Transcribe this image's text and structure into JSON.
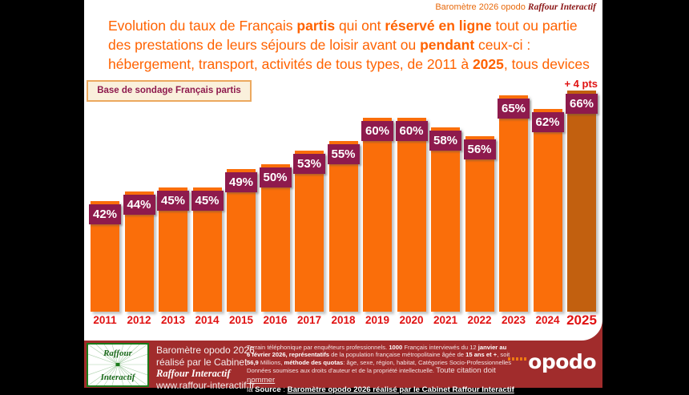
{
  "header": {
    "credit_plain": "Baromètre 2026 opodo",
    "credit_brand": "Raffour Interactif"
  },
  "title": {
    "l1p1": "Evolution du taux de Français ",
    "l1p2": "partis",
    "l1p3": " qui ont ",
    "l1p4": "réservé en ligne",
    "l1p5": " tout ou partie",
    "l2p1": "des prestations de leurs séjours de loisir avant ou ",
    "l2p2": "pendant",
    "l2p3": " ceux-ci :",
    "l3p1": "hébergement, transport, activités de tous types, de 2011 à ",
    "l3p2": "2025",
    "l3p3": ", tous devices"
  },
  "base_label": "Base de sondage Français partis",
  "chart_data": {
    "type": "bar",
    "title": "Evolution du taux de Français partis qui ont réservé en ligne tout ou partie des prestations de leurs séjours de loisir avant ou pendant ceux-ci : hébergement, transport, activités de tous types, de 2011 à 2025, tous devices",
    "base_note": "Base de sondage Français partis",
    "categories": [
      "2011",
      "2012",
      "2013",
      "2014",
      "2015",
      "2016",
      "2017",
      "2018",
      "2019",
      "2020",
      "2021",
      "2022",
      "2023",
      "2024",
      "2025"
    ],
    "values": [
      42,
      44,
      45,
      45,
      49,
      50,
      53,
      55,
      60,
      60,
      58,
      56,
      65,
      62,
      66
    ],
    "value_suffix": "%",
    "annotation": "+ 4 pts",
    "ylim": [
      18,
      70
    ],
    "grid": false,
    "legend": false,
    "bar_color": "#FA6E0A",
    "final_bar_color": "#C2600F",
    "value_label_bg": "#8E1A4D",
    "value_label_color": "#FFFFFF",
    "category_label_color": "#E01212",
    "annotation_color": "#E01212"
  },
  "footer": {
    "logo": {
      "top": "Raffour",
      "bottom": "Interactif"
    },
    "credit_l1": "Baromètre opodo 2026",
    "credit_l2": "réalisé par le Cabinet",
    "credit_l3": "Raffour Interactif",
    "credit_l4": "www.raffour-interactif.fr",
    "fine": {
      "l1a": "Terrain téléphonique par enquêteurs professionnels. ",
      "l1b": "1000",
      "l1c": " Français interviewés du 12 ",
      "l1d": "janvier au",
      "l2a": "6  février 2026, représentatifs",
      "l2b": " de la population française métropolitaine âgée de ",
      "l2c": "15 ans et +",
      "l2d": ", soit",
      "l3a": "56,9",
      "l3b": " Millions, ",
      "l3c": "méthode des quotas",
      "l3d": ": âge, sexe, région, habitat, Catégories Socio-Professionnelles",
      "l4a": "Données soumises aux droits d'auteur et de la propriété intellectuelle. ",
      "l4b": "Toute citation doit ",
      "l4c": "nommer",
      "l5a": "la ",
      "l5b": "Source",
      "l5c": " : ",
      "l5d": "Baromètre opodo 2026 réalisé par le Cabinet Raffour Interactif"
    },
    "opodo": "opodo"
  }
}
